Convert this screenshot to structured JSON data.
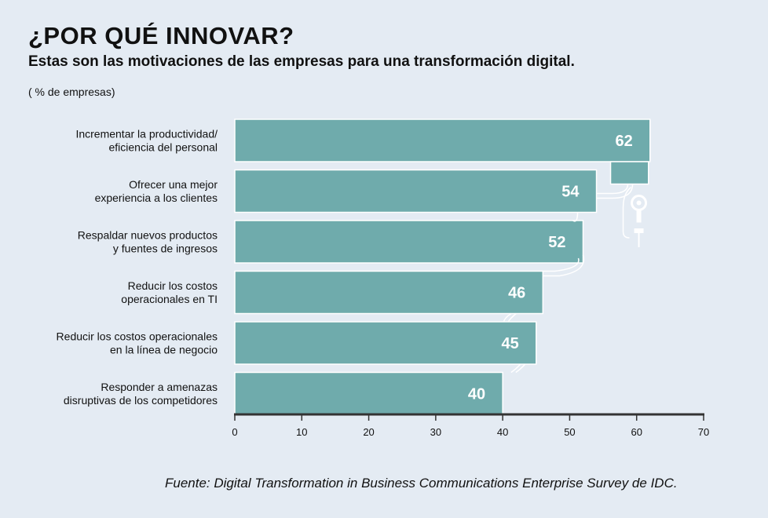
{
  "header": {
    "title": "¿POR QUÉ INNOVAR?",
    "subtitle": "Estas son las motivaciones de las empresas para una transformación digital.",
    "unit_label": "( % de empresas)"
  },
  "footer": {
    "source": "Fuente: Digital Transformation in Business Communications Enterprise Survey de IDC."
  },
  "colors": {
    "bar": "#6fabac",
    "bar_outline": "#ffffff",
    "axis": "#333333",
    "background": "#e4ebf3"
  },
  "chart_data": {
    "type": "bar",
    "orientation": "horizontal",
    "categories": [
      [
        "Incrementar la productividad/",
        "eficiencia del personal"
      ],
      [
        "Ofrecer una mejor",
        "experiencia a los clientes"
      ],
      [
        "Respaldar nuevos productos",
        "y fuentes de ingresos"
      ],
      [
        "Reducir los costos",
        "operacionales en TI"
      ],
      [
        "Reducir los costos operacionales",
        "en la línea de negocio"
      ],
      [
        "Responder a amenazas",
        "disruptivas de los competidores"
      ]
    ],
    "values": [
      62,
      54,
      52,
      46,
      45,
      40
    ],
    "value_labels": [
      "62",
      "54",
      "52",
      "46",
      "45",
      "40"
    ],
    "xlim": [
      0,
      70
    ],
    "xticks": [
      0,
      10,
      20,
      30,
      40,
      50,
      60,
      70
    ],
    "xtick_labels": [
      "0",
      "10",
      "20",
      "30",
      "40",
      "50",
      "60",
      "70"
    ],
    "grid": false
  }
}
